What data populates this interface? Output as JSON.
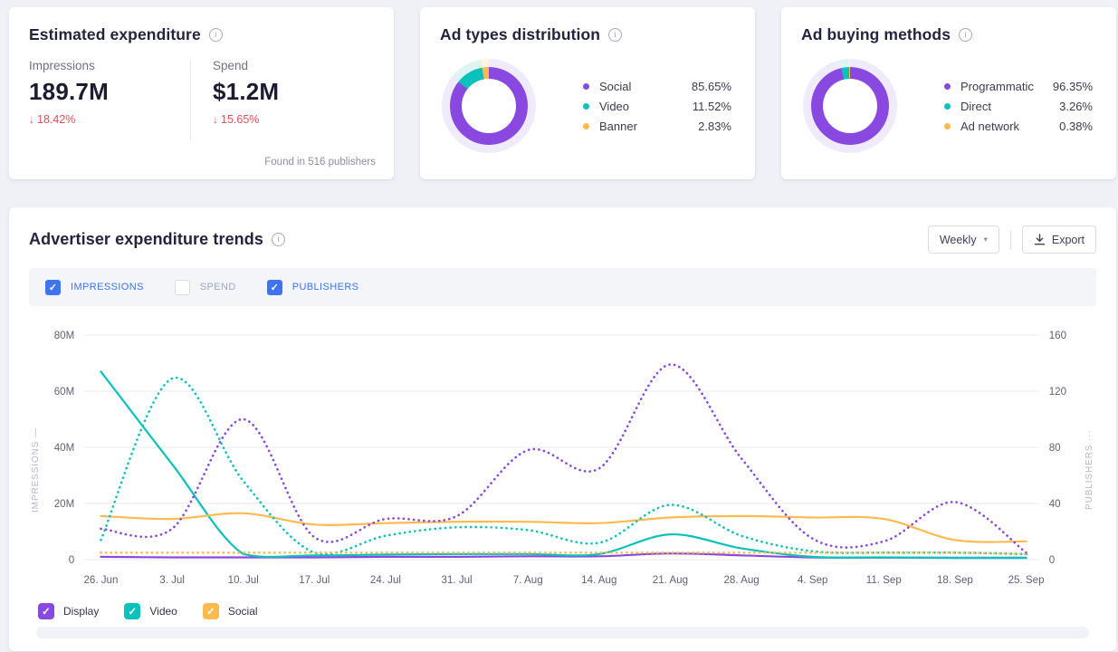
{
  "icons": {
    "info": "i",
    "caret_down": "▾",
    "check": "✓",
    "arrow_down": "↓"
  },
  "cards": {
    "expenditure": {
      "title": "Estimated expenditure",
      "metrics": [
        {
          "label": "Impressions",
          "value": "189.7M",
          "change": "18.42%",
          "direction": "down"
        },
        {
          "label": "Spend",
          "value": "$1.2M",
          "change": "15.65%",
          "direction": "down"
        }
      ],
      "footnote": "Found in 516 publishers",
      "change_color": "#EC4B5A"
    },
    "ad_types": {
      "title": "Ad types distribution"
    },
    "ad_buying": {
      "title": "Ad buying methods"
    }
  },
  "trends": {
    "title": "Advertiser expenditure trends",
    "period_selector": {
      "value": "Weekly"
    },
    "export_label": "Export",
    "metric_toggles": [
      {
        "label": "IMPRESSIONS",
        "checked": true
      },
      {
        "label": "SPEND",
        "checked": false
      },
      {
        "label": "PUBLISHERS",
        "checked": true
      }
    ],
    "legend": [
      {
        "label": "Display",
        "color": "#8949E1",
        "checked": true
      },
      {
        "label": "Video",
        "color": "#0BC1BB",
        "checked": true
      },
      {
        "label": "Social",
        "color": "#FFBA4D",
        "checked": true
      }
    ],
    "toggle_accent": "#3E74F1"
  },
  "chart_data": [
    {
      "id": "ad_types_distribution",
      "type": "pie",
      "title": "Ad types distribution",
      "slices": [
        {
          "label": "Social",
          "pct": 85.65,
          "display": "85.65%",
          "color": "#8949E1",
          "halo_color": "#EFEBFA"
        },
        {
          "label": "Video",
          "pct": 11.52,
          "display": "11.52%",
          "color": "#0BC1BB",
          "halo_color": "#DFF5F4"
        },
        {
          "label": "Banner",
          "pct": 2.83,
          "display": "2.83%",
          "color": "#FFBA4D",
          "halo_color": "#FDF4E3"
        }
      ]
    },
    {
      "id": "ad_buying_methods",
      "type": "pie",
      "title": "Ad buying methods",
      "slices": [
        {
          "label": "Programmatic",
          "pct": 96.35,
          "display": "96.35%",
          "color": "#8949E1",
          "halo_color": "#EFEBFA"
        },
        {
          "label": "Direct",
          "pct": 3.26,
          "display": "3.26%",
          "color": "#0BC1BB",
          "halo_color": "#DFF5F4"
        },
        {
          "label": "Ad network",
          "pct": 0.38,
          "display": "0.38%",
          "color": "#FFBA4D",
          "halo_color": "#FDF4E3"
        }
      ]
    },
    {
      "id": "advertiser_expenditure_trends",
      "type": "line",
      "title": "Advertiser expenditure trends",
      "interval": "Weekly",
      "grid": true,
      "x": [
        "26. Jun",
        "3. Jul",
        "10. Jul",
        "17. Jul",
        "24. Jul",
        "31. Jul",
        "7. Aug",
        "14. Aug",
        "21. Aug",
        "28. Aug",
        "4. Sep",
        "11. Sep",
        "18. Sep",
        "25. Sep"
      ],
      "left_axis": {
        "label": "IMPRESSIONS",
        "label_display": "IMPRESSIONS —",
        "unit": "M",
        "max": 80,
        "ticks": [
          "80M",
          "60M",
          "40M",
          "20M",
          "0"
        ]
      },
      "right_axis": {
        "label": "PUBLISHERS",
        "label_display": "PUBLISHERS ···",
        "max": 160,
        "ticks": [
          "160",
          "120",
          "80",
          "40",
          "0"
        ]
      },
      "series": [
        {
          "name": "Display — Impressions",
          "group": "Display",
          "axis": "left",
          "style": "solid",
          "color": "#8949E1",
          "values": [
            1,
            0.8,
            0.8,
            0.8,
            1,
            1,
            1.2,
            1.2,
            2.2,
            1.5,
            0.8,
            0.7,
            0.7,
            0.7
          ]
        },
        {
          "name": "Video — Impressions",
          "group": "Video",
          "axis": "left",
          "style": "solid",
          "color": "#0BC1BB",
          "values": [
            67,
            34,
            2,
            1.5,
            1.8,
            2,
            2,
            2,
            9,
            4,
            1,
            0.8,
            0.6,
            0.6
          ]
        },
        {
          "name": "Social — Impressions",
          "group": "Social",
          "axis": "left",
          "style": "solid",
          "color": "#FFBA4D",
          "values": [
            15.5,
            14.5,
            16.5,
            12.5,
            13,
            13.5,
            13.5,
            13,
            15,
            15.5,
            15,
            14.5,
            7,
            6.5
          ]
        },
        {
          "name": "Display — Publishers",
          "group": "Display",
          "axis": "right",
          "style": "dotted",
          "color": "#8949E1",
          "values": [
            22,
            22,
            100,
            16,
            29,
            31,
            78,
            65,
            139,
            72,
            15,
            13,
            41,
            5
          ]
        },
        {
          "name": "Video — Publishers",
          "group": "Video",
          "axis": "right",
          "style": "dotted",
          "color": "#0BC1BB",
          "values": [
            14,
            129,
            56,
            5,
            17,
            23,
            21,
            12,
            39,
            17,
            6,
            5,
            5,
            4
          ]
        },
        {
          "name": "Social — Publishers",
          "group": "Social",
          "axis": "right",
          "style": "dotted",
          "color": "#FFBA4D",
          "values": [
            5,
            5,
            5,
            5,
            5,
            5,
            5,
            5,
            5,
            5,
            5,
            5,
            5,
            4
          ]
        }
      ]
    }
  ]
}
